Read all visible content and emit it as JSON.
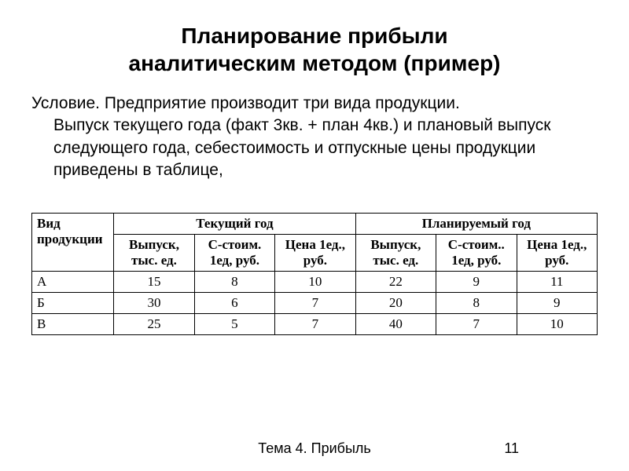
{
  "title_line1": "Планирование прибыли",
  "title_line2": "аналитическим методом (пример)",
  "paragraph_first": "Условие. Предприятие производит три вида продукции.",
  "paragraph_rest": "Выпуск текущего года (факт 3кв. + план 4кв.) и плановый выпуск следующего года, себестоимость и отпускные цены продукции приведены в таблице,",
  "table": {
    "row_header_l1": "Вид",
    "row_header_l2": "продукции",
    "group_current": "Текущий год",
    "group_planned": "Планируемый год",
    "sub_output_l1": "Выпуск,",
    "sub_output_l2": "тыс. ед.",
    "sub_cost_cur_l1": "С-стоим.",
    "sub_cost_cur_l2": "1ед, руб.",
    "sub_cost_plan_l1": "С-стоим..",
    "sub_cost_plan_l2": "1ед, руб.",
    "sub_price_l1": "Цена 1ед.,",
    "sub_price_l2": "руб.",
    "rows": [
      {
        "label": "А",
        "cur_out": "15",
        "cur_cost": "8",
        "cur_price": "10",
        "plan_out": "22",
        "plan_cost": "9",
        "plan_price": "11"
      },
      {
        "label": "Б",
        "cur_out": "30",
        "cur_cost": "6",
        "cur_price": "7",
        "plan_out": "20",
        "plan_cost": "8",
        "plan_price": "9"
      },
      {
        "label": "В",
        "cur_out": "25",
        "cur_cost": "5",
        "cur_price": "7",
        "plan_out": "40",
        "plan_cost": "7",
        "plan_price": "10"
      }
    ]
  },
  "footer_text": "Тема 4. Прибыль",
  "page_number": "11"
}
